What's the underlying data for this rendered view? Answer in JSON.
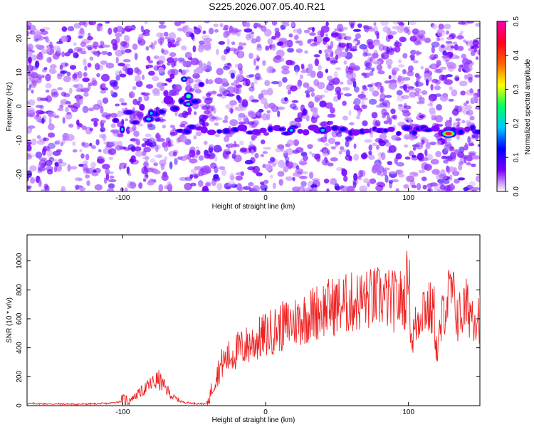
{
  "title": "S225.2026.007.05.40.R21",
  "colors": {
    "heatmap_background": "#ffffff",
    "snr_line": "#ee2222",
    "axis": "#000000"
  },
  "chart_data": [
    {
      "type": "heatmap",
      "title": "S225.2026.007.05.40.R21",
      "xlabel": "Height of straight line (km)",
      "ylabel": "Frequency (Hz)",
      "xlim": [
        -167,
        150
      ],
      "ylim": [
        -25,
        25
      ],
      "xticks": [
        -100,
        0,
        100
      ],
      "yticks": [
        -20,
        -10,
        0,
        10,
        20
      ],
      "colorbar": {
        "label": "Normalized spectral amplitude",
        "range": [
          0.0,
          0.5
        ],
        "ticks": [
          "0.0",
          "0.1",
          "0.2",
          "0.3",
          "0.4",
          "0.5"
        ],
        "colormap": [
          "#ffffff",
          "#7a00ff",
          "#0000ff",
          "#00c8ff",
          "#00ff66",
          "#ffff00",
          "#ff6600",
          "#ff0022",
          "#ff00aa"
        ]
      },
      "features": [
        {
          "name": "Doppler track",
          "x_range": [
            -60,
            150
          ],
          "frequency_hz": -7
        },
        {
          "name": "Early Doppler arc",
          "x_range": [
            -105,
            -45
          ],
          "frequency_start_hz": -6,
          "frequency_end_hz": 4
        },
        {
          "name": "Peak",
          "x": 128,
          "frequency_hz": -8,
          "amplitude": 0.5
        }
      ]
    },
    {
      "type": "line",
      "xlabel": "Height of straight line (km)",
      "ylabel": "SNR (10 * v/v)",
      "xlim": [
        -167,
        150
      ],
      "ylim": [
        0,
        1180
      ],
      "xticks": [
        -100,
        0,
        100
      ],
      "yticks": [
        0,
        200,
        400,
        600,
        800,
        1000
      ],
      "series": [
        {
          "name": "SNR",
          "x": [
            -167,
            -150,
            -130,
            -110,
            -95,
            -88,
            -80,
            -75,
            -70,
            -65,
            -58,
            -50,
            -42,
            -40,
            -35,
            -30,
            -20,
            -10,
            0,
            10,
            20,
            30,
            40,
            50,
            60,
            70,
            80,
            90,
            98,
            100,
            102,
            110,
            118,
            120,
            125,
            130,
            135,
            140,
            145,
            150
          ],
          "values": [
            15,
            12,
            10,
            15,
            40,
            90,
            150,
            180,
            120,
            60,
            25,
            15,
            12,
            40,
            200,
            300,
            380,
            430,
            490,
            540,
            580,
            620,
            670,
            690,
            710,
            730,
            750,
            720,
            740,
            1000,
            450,
            700,
            640,
            350,
            690,
            790,
            600,
            680,
            650,
            620
          ]
        }
      ]
    }
  ]
}
